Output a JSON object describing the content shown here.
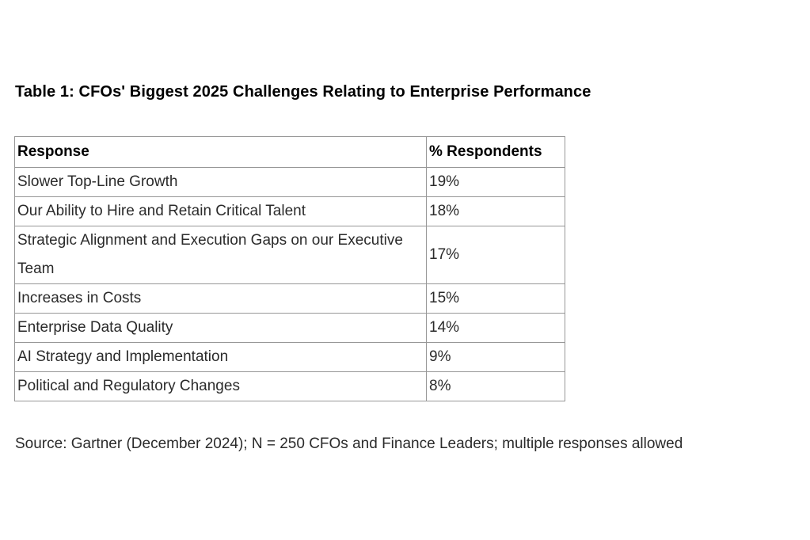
{
  "title": "Table 1: CFOs' Biggest 2025 Challenges Relating to Enterprise Performance",
  "table": {
    "columns": [
      "Response",
      "% Respondents"
    ],
    "rows": [
      {
        "response": "Slower Top-Line Growth",
        "percent": "19%"
      },
      {
        "response": "Our Ability to Hire and Retain Critical Talent",
        "percent": "18%"
      },
      {
        "response": "Strategic Alignment and Execution Gaps on our Executive Team",
        "percent": "17%"
      },
      {
        "response": "Increases in Costs",
        "percent": "15%"
      },
      {
        "response": "Enterprise Data Quality",
        "percent": "14%"
      },
      {
        "response": "AI Strategy and Implementation",
        "percent": "9%"
      },
      {
        "response": "Political and Regulatory Changes",
        "percent": "8%"
      }
    ]
  },
  "source_note": "Source: Gartner (December 2024); N = 250 CFOs and Finance Leaders; multiple responses allowed",
  "colors": {
    "page_background": "#ffffff",
    "table_border": "#979797",
    "body_text": "#2b2b2b",
    "title_text": "#000000"
  }
}
